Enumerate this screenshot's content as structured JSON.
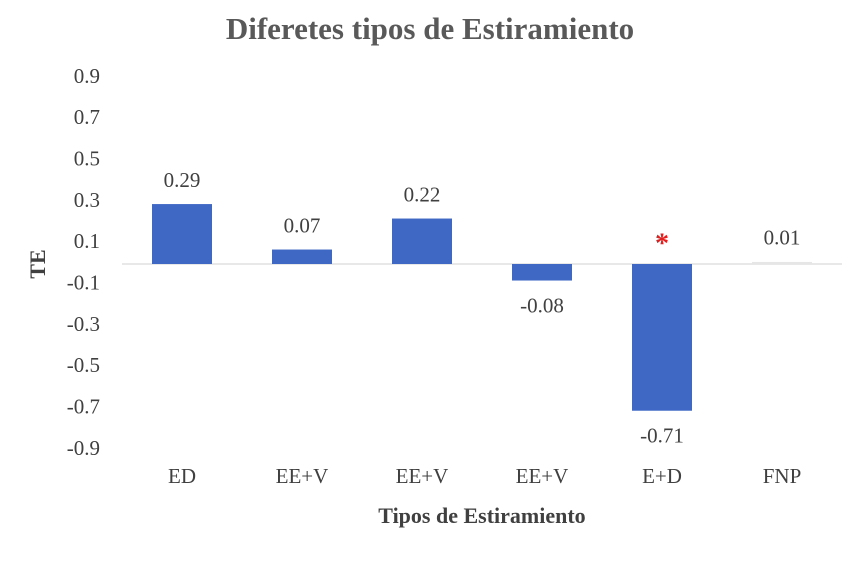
{
  "chart_data": {
    "type": "bar",
    "title": "Diferetes tipos de Estiramiento",
    "x_label": "Tipos de Estiramiento",
    "y_label": "TE",
    "categories": [
      "ED",
      "EE+V",
      "EE+V",
      "EE+V",
      "E+D",
      "FNP"
    ],
    "values": [
      0.29,
      0.07,
      0.22,
      -0.08,
      -0.71,
      0.01
    ],
    "colors": [
      "#3f68c4",
      "#3f68c4",
      "#3f68c4",
      "#3f68c4",
      "#3f68c4",
      "#e6e6e6"
    ],
    "annotation": "*",
    "annotation_color": "#e02020",
    "ylim": [
      -0.9,
      0.9
    ],
    "yticks": [
      -0.9,
      -0.7,
      -0.5,
      -0.3,
      -0.1,
      0.1,
      0.3,
      0.5,
      0.7,
      0.9
    ],
    "grid": false
  }
}
